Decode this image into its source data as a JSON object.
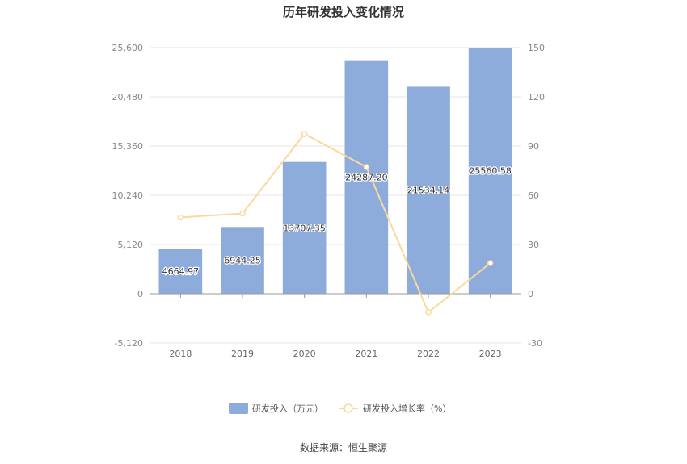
{
  "chart_data": {
    "type": "bar+line",
    "title": "历年研发投入变化情况",
    "categories": [
      "2018",
      "2019",
      "2020",
      "2021",
      "2022",
      "2023"
    ],
    "series": [
      {
        "name": "研发投入（万元）",
        "type": "bar",
        "axis": "left",
        "color": "#8eacdb",
        "values": [
          4664.97,
          6944.25,
          13707.35,
          24287.2,
          21534.14,
          25560.58
        ],
        "labels": [
          "4664.97",
          "6944.25",
          "13707.35",
          "24287.20",
          "21534.14",
          "25560.58"
        ]
      },
      {
        "name": "研发投入增长率（%）",
        "type": "line",
        "axis": "right",
        "color": "#fbd89c",
        "values": [
          46.5,
          48.9,
          97.4,
          77.2,
          -11.3,
          18.7
        ]
      }
    ],
    "left_axis": {
      "min": -5120,
      "max": 25600,
      "ticks": [
        "25,600",
        "20,480",
        "15,360",
        "10,240",
        "5,120",
        "0",
        "-5,120"
      ],
      "tick_values": [
        25600,
        20480,
        15360,
        10240,
        5120,
        0,
        -5120
      ]
    },
    "right_axis": {
      "min": -30,
      "max": 150,
      "ticks": [
        "150",
        "120",
        "90",
        "60",
        "30",
        "0",
        "-30"
      ],
      "tick_values": [
        150,
        120,
        90,
        60,
        30,
        0,
        -30
      ]
    },
    "grid": true,
    "legend_position": "bottom"
  },
  "source": "数据来源：恒生聚源"
}
